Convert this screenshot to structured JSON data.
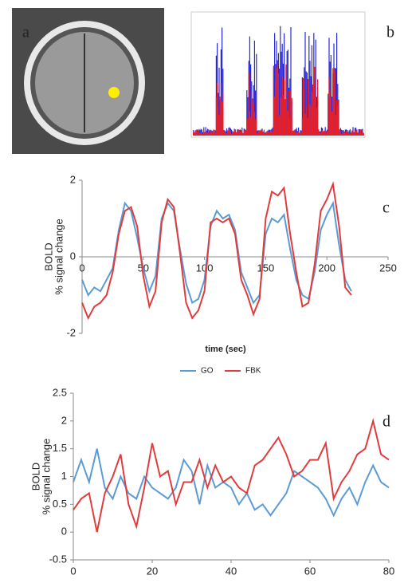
{
  "panel_labels": [
    "a",
    "b",
    "c",
    "d"
  ],
  "chart_data": [
    {
      "type": "line",
      "xlabel": "time (sec)",
      "ylabel": [
        "BOLD",
        "% signal change"
      ],
      "x": [
        0,
        5,
        10,
        15,
        20,
        25,
        30,
        35,
        40,
        45,
        50,
        55,
        60,
        65,
        70,
        75,
        80,
        85,
        90,
        95,
        100,
        105,
        110,
        115,
        120,
        125,
        130,
        135,
        140,
        145,
        150,
        155,
        160,
        165,
        170,
        175,
        180,
        185,
        190,
        195,
        200,
        205,
        210,
        215,
        220
      ],
      "series": [
        {
          "name": "GO",
          "color": "#5b9bd5",
          "values": [
            -0.6,
            -1.0,
            -0.8,
            -0.9,
            -0.6,
            -0.3,
            0.7,
            1.4,
            1.2,
            0.5,
            -0.3,
            -0.9,
            -0.5,
            1.0,
            1.4,
            1.2,
            0.2,
            -0.7,
            -1.2,
            -1.1,
            -0.6,
            0.8,
            1.2,
            1.0,
            1.1,
            0.7,
            -0.4,
            -0.8,
            -1.2,
            -1.0,
            0.6,
            1.0,
            0.9,
            1.1,
            0.2,
            -0.6,
            -1.0,
            -1.1,
            -0.4,
            0.7,
            1.1,
            1.4,
            0.3,
            -0.6,
            -0.9
          ]
        },
        {
          "name": "FBK",
          "color": "#e03c3c",
          "values": [
            -1.2,
            -1.6,
            -1.3,
            -1.2,
            -1.0,
            -0.4,
            0.6,
            1.2,
            1.3,
            0.8,
            -0.5,
            -1.3,
            -0.9,
            0.9,
            1.5,
            1.3,
            0.1,
            -1.2,
            -1.6,
            -1.4,
            -0.9,
            0.9,
            1.0,
            0.9,
            1.0,
            0.6,
            -0.6,
            -1.0,
            -1.5,
            -1.1,
            1.0,
            1.7,
            1.6,
            1.8,
            0.6,
            -0.4,
            -1.3,
            -1.2,
            -0.2,
            1.2,
            1.5,
            1.9,
            0.8,
            -0.8,
            -1.0
          ]
        }
      ],
      "xlim": [
        0,
        250
      ],
      "xticks": [
        0,
        50,
        100,
        150,
        200,
        250
      ],
      "ylim": [
        -2,
        2
      ],
      "yticks": [
        -2,
        0,
        2
      ],
      "legend": "bottom"
    },
    {
      "type": "line",
      "ylabel": [
        "BOLD",
        "% signal change"
      ],
      "x": [
        0,
        2,
        4,
        6,
        8,
        10,
        12,
        14,
        16,
        18,
        20,
        22,
        24,
        26,
        28,
        30,
        32,
        34,
        36,
        38,
        40,
        42,
        44,
        46,
        48,
        50,
        52,
        54,
        56,
        58,
        60,
        62,
        64,
        66,
        68,
        70,
        72,
        74,
        76,
        78,
        80
      ],
      "series": [
        {
          "color": "#5b9bd5",
          "values": [
            0.9,
            1.3,
            0.9,
            1.5,
            0.8,
            0.6,
            1.0,
            0.7,
            0.6,
            1.0,
            0.8,
            0.7,
            0.6,
            0.8,
            1.3,
            1.1,
            0.5,
            1.2,
            0.8,
            0.9,
            0.8,
            0.5,
            0.7,
            0.4,
            0.5,
            0.3,
            0.5,
            0.7,
            1.1,
            1.0,
            0.9,
            0.8,
            0.6,
            0.3,
            0.6,
            0.8,
            0.5,
            0.9,
            1.2,
            0.9,
            0.8
          ]
        },
        {
          "color": "#e03c3c",
          "values": [
            0.4,
            0.6,
            0.7,
            0.0,
            0.7,
            1.0,
            1.4,
            0.5,
            0.1,
            0.8,
            1.6,
            1.0,
            1.1,
            0.5,
            0.9,
            0.9,
            1.3,
            0.8,
            1.2,
            0.9,
            1.0,
            0.8,
            0.7,
            1.2,
            1.3,
            1.5,
            1.7,
            1.4,
            1.0,
            1.1,
            1.3,
            1.3,
            1.6,
            0.6,
            0.9,
            1.1,
            1.4,
            1.5,
            2.0,
            1.4,
            1.3
          ]
        }
      ],
      "xlim": [
        0,
        80
      ],
      "xticks": [
        0,
        20,
        40,
        60,
        80
      ],
      "ylim": [
        -0.5,
        2.5
      ],
      "yticks": [
        -0.5,
        0,
        0.5,
        1,
        1.5,
        2,
        2.5
      ]
    }
  ]
}
